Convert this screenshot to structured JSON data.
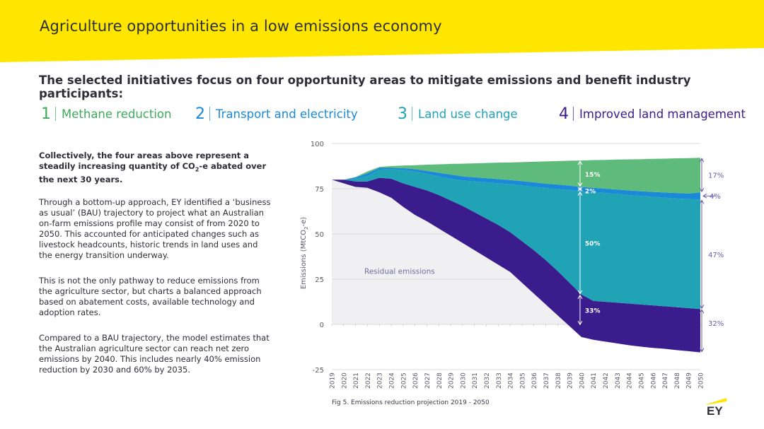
{
  "header": {
    "title": "Agriculture opportunities in a low emissions economy"
  },
  "intro": "The selected initiatives focus on four opportunity areas to mitigate emissions and benefit industry participants:",
  "areas": [
    {
      "number": "1",
      "label": "Methane reduction",
      "color": "#3cab5b"
    },
    {
      "number": "2",
      "label": "Transport and electricity",
      "color": "#1a8ad8"
    },
    {
      "number": "3",
      "label": "Land use change",
      "color": "#1fa3b5"
    },
    {
      "number": "4",
      "label": "Improved land management",
      "color": "#3b1c8c"
    }
  ],
  "paragraphs": [
    {
      "pre": "Collectively, the four areas above represent a steadily increasing quantity of CO",
      "sub": "2",
      "post": "-e abated over the next 30 years."
    },
    {
      "text": "Through a bottom-up approach, EY identified a ‘business as usual’ (BAU) trajectory to project what an Australian on-farm emissions profile may consist of from 2020 to 2050. This accounted for anticipated changes such as livestock headcounts, historic trends in land uses and the energy transition underway."
    },
    {
      "text": "This is not the only pathway to reduce emissions from the agriculture sector, but charts a balanced approach based on abatement costs, available technology and adoption rates."
    },
    {
      "text": "Compared to a BAU trajectory, the model estimates that the Australian agriculture sector can reach net zero emissions by 2040. This includes nearly 40% emission reduction by 2030 and 60% by 2035."
    }
  ],
  "caption": "Fig 5. Emissions reduction projection 2019 - 2050",
  "logo": {
    "text": "EY",
    "accent": "#ffe600"
  },
  "colors": {
    "header": "#ffe600",
    "dark": "#2e2e38",
    "annotation": "#6a5aa8"
  },
  "chart_data": {
    "type": "area",
    "ylabel_pre": "Emissions (MtCO",
    "ylabel_sub": "2",
    "ylabel_post": "-e)",
    "ylim": [
      -25,
      100
    ],
    "yticks": [
      -25,
      0,
      25,
      50,
      75,
      100
    ],
    "x": [
      2019,
      2020,
      2021,
      2022,
      2023,
      2024,
      2025,
      2026,
      2027,
      2028,
      2029,
      2030,
      2031,
      2032,
      2033,
      2034,
      2035,
      2036,
      2037,
      2038,
      2039,
      2040,
      2041,
      2042,
      2043,
      2044,
      2045,
      2046,
      2047,
      2048,
      2049,
      2050
    ],
    "series": [
      {
        "color": "#3b1c8c",
        "lower": [
          80,
          78,
          76,
          75.5,
          73,
          70,
          65,
          60.5,
          57,
          53,
          49,
          45,
          41,
          37,
          33,
          29,
          23,
          17,
          11,
          5,
          -1,
          -7,
          -8.5,
          -9.5,
          -10.5,
          -11.5,
          -12.3,
          -13,
          -13.5,
          -14.2,
          -14.8,
          -15.5
        ]
      },
      {
        "color": "#1fa3b5",
        "lower": [
          80,
          80,
          79,
          79,
          81,
          80.5,
          78,
          76,
          74,
          71.5,
          68.5,
          65.5,
          62,
          58.5,
          55,
          51,
          46,
          41,
          35.5,
          29.5,
          23,
          16.5,
          13,
          12.5,
          12,
          11.5,
          11,
          10.5,
          10,
          9.5,
          9,
          8.5
        ]
      },
      {
        "color": "#1a8ad8",
        "lower": [
          80,
          80,
          80.5,
          82,
          85.5,
          85.8,
          85.3,
          84.5,
          83.2,
          81.8,
          80.5,
          79.5,
          79,
          78.5,
          78,
          77.5,
          76.8,
          76,
          75.4,
          74.8,
          74.2,
          73.6,
          73,
          72.6,
          72,
          71.5,
          71,
          70.5,
          70,
          69.6,
          69.3,
          69
        ]
      },
      {
        "color": "#5ebb7b",
        "lower": [
          80,
          80,
          81.2,
          83.5,
          86.5,
          86.5,
          86.4,
          85.8,
          84.8,
          83.8,
          82.8,
          81.8,
          81.3,
          80.8,
          80.3,
          79.8,
          79.2,
          78.5,
          77.8,
          77.3,
          76.7,
          76,
          75.5,
          75,
          74.5,
          74,
          73.6,
          73.2,
          72.9,
          72.6,
          72.3,
          73
        ]
      }
    ],
    "top": [
      80,
      80,
      81.5,
      84.5,
      87,
      87.5,
      87.8,
      88,
      88.3,
      88.5,
      88.7,
      88.8,
      89,
      89.2,
      89.4,
      89.5,
      89.7,
      89.9,
      90.1,
      90.3,
      90.5,
      90.6,
      90.8,
      90.9,
      91.1,
      91.2,
      91.3,
      91.5,
      91.6,
      91.8,
      91.9,
      92.1
    ],
    "annotations": {
      "residual": "Residual emissions",
      "y2040": [
        {
          "label": "15%",
          "y": 90.6
        },
        {
          "label": "2%",
          "y": 76
        },
        {
          "label": "50%",
          "y": 73.6
        },
        {
          "label": "33%",
          "y": 16.5
        }
      ],
      "y2050": [
        {
          "label": "17%",
          "y": 92.1
        },
        {
          "label": "4%",
          "y": 73
        },
        {
          "label": "47%",
          "y": 69
        },
        {
          "label": "32%",
          "y": 8.5
        }
      ]
    }
  }
}
